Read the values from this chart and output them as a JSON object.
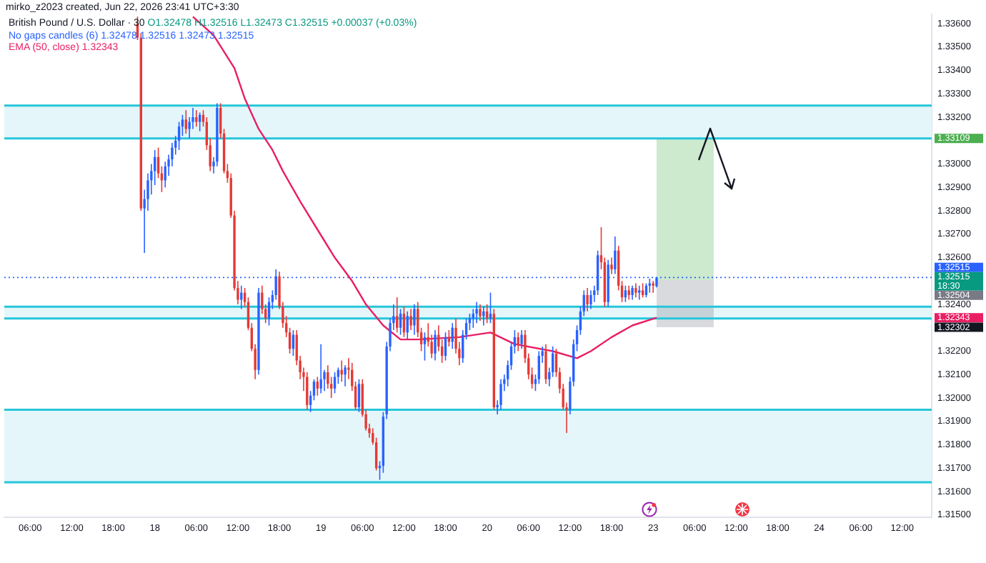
{
  "chart_data": {
    "type": "candlestick",
    "title": "British Pound / U.S. Dollar · 30",
    "annotations": [
      "mirko_z2023 created, Jun 22, 2026 23:41 UTC+3:30",
      "O1.32478 H1.32516 L1.32473 C1.32515 +0.00037 (+0.03%)",
      "No gaps candles (6) 1.32478 1.32516 1.32473 1.32515",
      "1.32343",
      "1.32515\n18:30",
      "1.32504",
      "1.33109",
      "1.32302"
    ],
    "categories": [
      null,
      null,
      null,
      null,
      null,
      null,
      null,
      "06:00",
      null,
      null,
      null,
      null,
      null,
      null,
      null,
      null,
      null,
      null,
      null,
      "12:00",
      null,
      null,
      null,
      null,
      null,
      null,
      null,
      null,
      null,
      null,
      null,
      "18:00",
      null,
      null,
      null,
      null,
      null,
      null,
      null,
      null,
      null,
      null,
      null,
      "18",
      null,
      null,
      null,
      null,
      null,
      null,
      null,
      null,
      null,
      null,
      null,
      "06:00",
      null,
      null,
      null,
      null,
      null,
      null,
      null,
      null,
      null,
      null,
      null,
      "12:00",
      null,
      null,
      null,
      null,
      null,
      null,
      null,
      null,
      null,
      null,
      null,
      "18:00",
      null,
      null,
      null,
      null,
      null,
      null,
      null,
      null,
      null,
      null,
      null,
      "19",
      null,
      null,
      null,
      null,
      null,
      null,
      null,
      null,
      null,
      null,
      null,
      "06:00",
      null,
      null,
      null,
      null,
      null,
      null,
      null,
      null,
      null,
      null,
      null,
      "12:00",
      null,
      null,
      null,
      null,
      null,
      null,
      null,
      null,
      null,
      null,
      null,
      "18:00",
      null,
      null,
      null,
      null,
      null,
      null,
      null,
      null,
      null,
      null,
      null,
      "20",
      null,
      null,
      null,
      null,
      null,
      null,
      null,
      null,
      null,
      null,
      null,
      "06:00",
      null,
      null,
      null,
      null,
      null,
      null,
      null,
      null,
      null,
      null,
      null,
      "12:00",
      null,
      null,
      null,
      null,
      null,
      null,
      null,
      null,
      null,
      null,
      null,
      "18:00",
      null,
      null,
      null,
      null,
      null,
      null,
      null,
      null,
      null,
      null,
      null,
      "23",
      null,
      null,
      null,
      null,
      null,
      null,
      null,
      null,
      null,
      null,
      null,
      "06:00",
      null,
      null,
      null,
      null,
      null,
      null,
      null,
      null,
      null,
      null,
      null,
      "12:00",
      null,
      null,
      null,
      null,
      null,
      null,
      null,
      null,
      null,
      null,
      null,
      "18:00",
      null,
      null,
      null,
      null,
      null,
      null,
      null,
      null,
      null,
      null,
      null,
      "24",
      null,
      null,
      null,
      null,
      null,
      null,
      null,
      null,
      null,
      null,
      null,
      "06:00",
      null,
      null,
      null,
      null,
      null,
      null,
      null,
      null,
      null,
      null,
      null,
      "12:00",
      null,
      null,
      null,
      null,
      null,
      null,
      null,
      null
    ],
    "ohlc": [
      null,
      null,
      null,
      null,
      null,
      null,
      null,
      null,
      null,
      null,
      null,
      null,
      null,
      null,
      null,
      null,
      null,
      null,
      null,
      null,
      null,
      null,
      null,
      null,
      null,
      null,
      null,
      null,
      null,
      null,
      null,
      null,
      null,
      null,
      null,
      null,
      null,
      null,
      [
        1.336,
        1.3363,
        1.3353,
        1.3354
      ],
      [
        1.3354,
        1.3356,
        1.328,
        1.3281
      ],
      [
        1.3281,
        1.3289,
        1.3262,
        1.3285
      ],
      [
        1.3285,
        1.3296,
        1.328,
        1.3293
      ],
      [
        1.3293,
        1.33,
        1.3287,
        1.3297
      ],
      [
        1.3297,
        1.3306,
        1.3291,
        1.3303
      ],
      [
        1.3303,
        1.3307,
        1.3294,
        1.3296
      ],
      [
        1.3296,
        1.3299,
        1.3288,
        1.3293
      ],
      [
        1.3293,
        1.3301,
        1.329,
        1.3299
      ],
      [
        1.3299,
        1.3304,
        1.3295,
        1.3302
      ],
      [
        1.3302,
        1.3309,
        1.3299,
        1.3307
      ],
      [
        1.3307,
        1.3312,
        1.3304,
        1.331
      ],
      [
        1.331,
        1.3318,
        1.3306,
        1.3316
      ],
      [
        1.3316,
        1.3321,
        1.3312,
        1.3319
      ],
      [
        1.3319,
        1.3323,
        1.3313,
        1.3315
      ],
      [
        1.3315,
        1.332,
        1.3311,
        1.3318
      ],
      [
        1.3318,
        1.3324,
        1.3315,
        1.332
      ],
      [
        1.332,
        1.3323,
        1.3316,
        1.3318
      ],
      [
        1.3318,
        1.3322,
        1.3314,
        1.3321
      ],
      [
        1.3321,
        1.3323,
        1.3316,
        1.3318
      ],
      [
        1.3318,
        1.332,
        1.3306,
        1.3308
      ],
      [
        1.3308,
        1.3311,
        1.3297,
        1.3299
      ],
      [
        1.3299,
        1.3303,
        1.3296,
        1.3301
      ],
      [
        1.3301,
        1.3326,
        1.3299,
        1.3324
      ],
      [
        1.3324,
        1.3326,
        1.3311,
        1.3313
      ],
      [
        1.3313,
        1.3315,
        1.3296,
        1.3297
      ],
      [
        1.3297,
        1.33,
        1.3292,
        1.3294
      ],
      [
        1.3294,
        1.3296,
        1.3277,
        1.3278
      ],
      [
        1.3278,
        1.328,
        1.3246,
        1.3247
      ],
      [
        1.3247,
        1.325,
        1.324,
        1.3242
      ],
      [
        1.3242,
        1.3248,
        1.3238,
        1.3245
      ],
      [
        1.3245,
        1.3247,
        1.3239,
        1.3241
      ],
      [
        1.3241,
        1.3243,
        1.3229,
        1.323
      ],
      [
        1.323,
        1.3232,
        1.322,
        1.3221
      ],
      [
        1.3221,
        1.3223,
        1.3208,
        1.3212
      ],
      [
        1.3212,
        1.3247,
        1.321,
        1.3245
      ],
      [
        1.3245,
        1.3248,
        1.3236,
        1.3238
      ],
      [
        1.3238,
        1.324,
        1.3232,
        1.3234
      ],
      [
        1.3234,
        1.3243,
        1.3231,
        1.3241
      ],
      [
        1.3241,
        1.3246,
        1.3238,
        1.3244
      ],
      [
        1.3244,
        1.3255,
        1.3242,
        1.3252
      ],
      [
        1.3252,
        1.3254,
        1.3238,
        1.3239
      ],
      [
        1.3239,
        1.3241,
        1.323,
        1.3232
      ],
      [
        1.3232,
        1.3235,
        1.3226,
        1.3228
      ],
      [
        1.3228,
        1.323,
        1.3219,
        1.3221
      ],
      [
        1.3221,
        1.3229,
        1.3218,
        1.3227
      ],
      [
        1.3227,
        1.3229,
        1.3214,
        1.3216
      ],
      [
        1.3216,
        1.3218,
        1.3208,
        1.3211
      ],
      [
        1.3211,
        1.3213,
        1.3203,
        1.3209
      ],
      [
        1.3209,
        1.3211,
        1.3195,
        1.3197
      ],
      [
        1.3197,
        1.3203,
        1.3194,
        1.3201
      ],
      [
        1.3201,
        1.3208,
        1.3199,
        1.3207
      ],
      [
        1.3207,
        1.3209,
        1.3201,
        1.3204
      ],
      [
        1.3204,
        1.3223,
        1.3202,
        1.3208
      ],
      [
        1.3208,
        1.3212,
        1.3203,
        1.3211
      ],
      [
        1.3211,
        1.3214,
        1.3204,
        1.3206
      ],
      [
        1.3206,
        1.3209,
        1.32,
        1.3204
      ],
      [
        1.3204,
        1.3211,
        1.3202,
        1.3209
      ],
      [
        1.3209,
        1.3213,
        1.3206,
        1.3212
      ],
      [
        1.3212,
        1.3216,
        1.3207,
        1.321
      ],
      [
        1.321,
        1.3214,
        1.3205,
        1.3213
      ],
      [
        1.3213,
        1.3217,
        1.3208,
        1.3212
      ],
      [
        1.3212,
        1.3215,
        1.3203,
        1.3205
      ],
      [
        1.3205,
        1.3207,
        1.3195,
        1.3196
      ],
      [
        1.3196,
        1.3208,
        1.3194,
        1.3206
      ],
      [
        1.3206,
        1.3208,
        1.3192,
        1.3193
      ],
      [
        1.3193,
        1.3195,
        1.3186,
        1.3187
      ],
      [
        1.3187,
        1.3189,
        1.3183,
        1.3185
      ],
      [
        1.3185,
        1.3187,
        1.318,
        1.3181
      ],
      [
        1.3181,
        1.3183,
        1.3169,
        1.317
      ],
      [
        1.317,
        1.3173,
        1.3165,
        1.3171
      ],
      [
        1.3171,
        1.3194,
        1.3168,
        1.3192
      ],
      [
        1.3193,
        1.3224,
        1.3191,
        1.3222
      ],
      [
        1.3222,
        1.3234,
        1.322,
        1.3232
      ],
      [
        1.3232,
        1.324,
        1.3229,
        1.3235
      ],
      [
        1.3235,
        1.3243,
        1.3228,
        1.323
      ],
      [
        1.323,
        1.3238,
        1.3227,
        1.3236
      ],
      [
        1.3236,
        1.3239,
        1.3226,
        1.3228
      ],
      [
        1.3228,
        1.3237,
        1.3225,
        1.3235
      ],
      [
        1.3235,
        1.3238,
        1.3229,
        1.3231
      ],
      [
        1.3231,
        1.324,
        1.3227,
        1.3238
      ],
      [
        1.3238,
        1.3241,
        1.3226,
        1.3228
      ],
      [
        1.3228,
        1.323,
        1.322,
        1.3223
      ],
      [
        1.3223,
        1.3228,
        1.3216,
        1.3226
      ],
      [
        1.3226,
        1.3232,
        1.3222,
        1.3224
      ],
      [
        1.3224,
        1.3227,
        1.3217,
        1.3219
      ],
      [
        1.3219,
        1.3229,
        1.3216,
        1.3227
      ],
      [
        1.3227,
        1.3231,
        1.322,
        1.3222
      ],
      [
        1.3222,
        1.3225,
        1.3215,
        1.3218
      ],
      [
        1.3218,
        1.3228,
        1.3216,
        1.3226
      ],
      [
        1.3226,
        1.3229,
        1.3222,
        1.3224
      ],
      [
        1.3224,
        1.3232,
        1.3221,
        1.323
      ],
      [
        1.323,
        1.3234,
        1.3219,
        1.3221
      ],
      [
        1.3221,
        1.3224,
        1.3214,
        1.3217
      ],
      [
        1.3217,
        1.3229,
        1.3215,
        1.3227
      ],
      [
        1.3227,
        1.3234,
        1.3225,
        1.3232
      ],
      [
        1.3232,
        1.3236,
        1.3229,
        1.3234
      ],
      [
        1.3234,
        1.3238,
        1.323,
        1.3236
      ],
      [
        1.3236,
        1.3241,
        1.3232,
        1.3238
      ],
      [
        1.3238,
        1.324,
        1.3233,
        1.3235
      ],
      [
        1.3235,
        1.3239,
        1.3231,
        1.3237
      ],
      [
        1.3237,
        1.324,
        1.3232,
        1.3234
      ],
      [
        1.3234,
        1.3245,
        1.3232,
        1.3236
      ],
      [
        1.3236,
        1.3238,
        1.3195,
        1.3196
      ],
      [
        1.3196,
        1.3199,
        1.3193,
        1.3197
      ],
      [
        1.3197,
        1.3208,
        1.3195,
        1.3206
      ],
      [
        1.3206,
        1.321,
        1.3203,
        1.3208
      ],
      [
        1.3208,
        1.3216,
        1.3205,
        1.3214
      ],
      [
        1.3214,
        1.3224,
        1.3212,
        1.3222
      ],
      [
        1.3222,
        1.3229,
        1.3219,
        1.3226
      ],
      [
        1.3226,
        1.3228,
        1.322,
        1.3223
      ],
      [
        1.3223,
        1.3229,
        1.3221,
        1.3227
      ],
      [
        1.3227,
        1.3229,
        1.3215,
        1.3217
      ],
      [
        1.3217,
        1.3219,
        1.3208,
        1.321
      ],
      [
        1.321,
        1.3213,
        1.3204,
        1.3206
      ],
      [
        1.3206,
        1.321,
        1.3203,
        1.3208
      ],
      [
        1.3208,
        1.322,
        1.3206,
        1.3218
      ],
      [
        1.3218,
        1.3222,
        1.3215,
        1.322
      ],
      [
        1.322,
        1.3223,
        1.3206,
        1.3208
      ],
      [
        1.3208,
        1.3213,
        1.3205,
        1.3211
      ],
      [
        1.3211,
        1.3222,
        1.3209,
        1.3219
      ],
      [
        1.3219,
        1.3221,
        1.3209,
        1.3211
      ],
      [
        1.3211,
        1.3213,
        1.3202,
        1.3204
      ],
      [
        1.3204,
        1.3206,
        1.3195,
        1.3196
      ],
      [
        1.3196,
        1.3198,
        1.3185,
        1.3195
      ],
      [
        1.3195,
        1.3209,
        1.3193,
        1.3207
      ],
      [
        1.3207,
        1.3225,
        1.3205,
        1.3223
      ],
      [
        1.3223,
        1.3231,
        1.322,
        1.3229
      ],
      [
        1.3229,
        1.3239,
        1.3227,
        1.3237
      ],
      [
        1.3237,
        1.3246,
        1.3235,
        1.3244
      ],
      [
        1.3244,
        1.3247,
        1.3237,
        1.324
      ],
      [
        1.324,
        1.3246,
        1.3238,
        1.3244
      ],
      [
        1.3244,
        1.3248,
        1.3241,
        1.3246
      ],
      [
        1.3246,
        1.3263,
        1.3244,
        1.3261
      ],
      [
        1.3261,
        1.3273,
        1.3255,
        1.3258
      ],
      [
        1.3258,
        1.326,
        1.3239,
        1.3241
      ],
      [
        1.3241,
        1.3259,
        1.3239,
        1.3257
      ],
      [
        1.3257,
        1.326,
        1.3253,
        1.3255
      ],
      [
        1.3255,
        1.3269,
        1.3253,
        1.3263
      ],
      [
        1.3263,
        1.3265,
        1.3246,
        1.3248
      ],
      [
        1.3248,
        1.325,
        1.3241,
        1.3243
      ],
      [
        1.3243,
        1.3248,
        1.3241,
        1.3246
      ],
      [
        1.3246,
        1.3248,
        1.3242,
        1.3244
      ],
      [
        1.3244,
        1.3248,
        1.3242,
        1.3247
      ],
      [
        1.3247,
        1.3249,
        1.3243,
        1.3245
      ],
      [
        1.3245,
        1.3248,
        1.3242,
        1.3246
      ],
      [
        1.3246,
        1.3249,
        1.3243,
        1.3244
      ],
      [
        1.3244,
        1.3249,
        1.3243,
        1.3248
      ],
      [
        1.3248,
        1.3251,
        1.3245,
        1.3249
      ],
      [
        1.3249,
        1.325,
        1.3245,
        1.3248
      ],
      [
        1.32478,
        1.32516,
        1.32473,
        1.32515
      ],
      null,
      null,
      null,
      null,
      null,
      null,
      null,
      null,
      null,
      null,
      null,
      null,
      null,
      null,
      null,
      null,
      null,
      null,
      null,
      null,
      null,
      null,
      null,
      null,
      null,
      null,
      null,
      null,
      null,
      null,
      null,
      null,
      null,
      null,
      null,
      null,
      null,
      null,
      null,
      null,
      null,
      null,
      null,
      null,
      null,
      null,
      null,
      null,
      null,
      null,
      null,
      null,
      null,
      null,
      null,
      null,
      null,
      null,
      null,
      null,
      null,
      null,
      null,
      null,
      null,
      null,
      null,
      null,
      null,
      null,
      null,
      null,
      null,
      null,
      null,
      null,
      null,
      null,
      null
    ],
    "colors": [
      null,
      null,
      null,
      null,
      null,
      null,
      null,
      null,
      null,
      null,
      null,
      null,
      null,
      null,
      null,
      null,
      null,
      null,
      null,
      null,
      null,
      null,
      null,
      null,
      null,
      null,
      null,
      null,
      null,
      null,
      null,
      null,
      null,
      null,
      null,
      null,
      null,
      null,
      "#e53935",
      "#e53935",
      "#2962ff",
      "#2962ff",
      "#2962ff",
      "#2962ff",
      "#e53935",
      "#e53935",
      "#2962ff",
      "#2962ff",
      "#2962ff",
      "#2962ff",
      "#2962ff",
      "#2962ff",
      "#e53935",
      "#2962ff",
      "#2962ff",
      "#e53935",
      "#2962ff",
      "#e53935",
      "#e53935",
      "#e53935",
      "#2962ff",
      "#2962ff",
      "#e53935",
      "#e53935",
      "#e53935",
      "#e53935",
      "#e53935",
      "#e53935",
      "#2962ff",
      "#e53935",
      "#e53935",
      "#e53935",
      "#e53935",
      "#2962ff",
      "#e53935",
      "#e53935",
      "#2962ff",
      "#2962ff",
      "#2962ff",
      "#e53935",
      "#e53935",
      "#e53935",
      "#e53935",
      "#2962ff",
      "#e53935",
      "#e53935",
      "#e53935",
      "#e53935",
      "#2962ff",
      "#2962ff",
      "#e53935",
      "#2962ff",
      "#2962ff",
      "#e53935",
      "#e53935",
      "#2962ff",
      "#2962ff",
      "#e53935",
      "#2962ff",
      "#e53935",
      "#e53935",
      "#e53935",
      "#2962ff",
      "#e53935",
      "#e53935",
      "#e53935",
      "#e53935",
      "#e53935",
      "#2962ff",
      "#2962ff",
      "#2962ff",
      "#2962ff",
      "#2962ff",
      "#e53935",
      "#2962ff",
      "#e53935",
      "#2962ff",
      "#e53935",
      "#2962ff",
      "#e53935",
      "#e53935",
      "#2962ff",
      "#e53935",
      "#e53935",
      "#2962ff",
      "#e53935",
      "#e53935",
      "#2962ff",
      "#e53935",
      "#2962ff",
      "#e53935",
      "#e53935",
      "#2962ff",
      "#2962ff",
      "#2962ff",
      "#2962ff",
      "#2962ff",
      "#e53935",
      "#2962ff",
      "#e53935",
      "#2962ff",
      "#e53935",
      "#2962ff",
      "#2962ff",
      "#2962ff",
      "#2962ff",
      "#2962ff",
      "#2962ff",
      "#e53935",
      "#2962ff",
      "#e53935",
      "#e53935",
      "#e53935",
      "#2962ff",
      "#2962ff",
      "#2962ff",
      "#e53935",
      "#2962ff",
      "#2962ff",
      "#e53935",
      "#e53935",
      "#e53935",
      "#e53935",
      "#2962ff",
      "#2962ff",
      "#2962ff",
      "#2962ff",
      "#2962ff",
      "#e53935",
      "#2962ff",
      "#2962ff",
      "#2962ff",
      "#e53935",
      "#e53935",
      "#2962ff",
      "#e53935",
      "#2962ff",
      "#e53935",
      "#e53935",
      "#2962ff",
      "#e53935",
      "#2962ff",
      "#e53935",
      "#2962ff",
      "#e53935",
      "#2962ff",
      "#2962ff",
      "#e53935",
      "#2962ff",
      null,
      null,
      null,
      null,
      null,
      null,
      null,
      null,
      null,
      null,
      null,
      null,
      null,
      null,
      null,
      null,
      null,
      null,
      null,
      null,
      null,
      null,
      null,
      null,
      null,
      null,
      null,
      null,
      null,
      null,
      null,
      null,
      null,
      null,
      null,
      null,
      null,
      null,
      null,
      null,
      null,
      null,
      null,
      null,
      null,
      null,
      null,
      null,
      null,
      null,
      null,
      null,
      null,
      null,
      null,
      null,
      null,
      null,
      null,
      null,
      null,
      null,
      null,
      null,
      null,
      null,
      null,
      null,
      null,
      null,
      null,
      null,
      null,
      null,
      null,
      null,
      null,
      null,
      null
    ],
    "series": [
      {
        "type": "line",
        "name": "EMA (50, close)",
        "color": "#e91e63",
        "values": [
          null,
          null,
          null,
          null,
          null,
          null,
          null,
          null,
          null,
          null,
          null,
          null,
          null,
          null,
          null,
          null,
          null,
          null,
          null,
          null,
          null,
          null,
          null,
          null,
          null,
          null,
          null,
          null,
          null,
          null,
          null,
          null,
          null,
          null,
          null,
          null,
          null,
          null,
          null,
          null,
          null,
          null,
          null,
          null,
          null,
          null,
          null,
          null,
          null,
          null,
          null,
          null,
          null,
          null,
          1.3363,
          null,
          null,
          null,
          null,
          null,
          1.3355,
          null,
          null,
          null,
          null,
          null,
          1.3341,
          null,
          null,
          1.3328,
          null,
          null,
          null,
          1.3315,
          null,
          null,
          null,
          1.3306,
          null,
          null,
          1.3297,
          null,
          null,
          null,
          null,
          1.3284,
          null,
          null,
          null,
          null,
          1.3272,
          null,
          null,
          null,
          null,
          1.326,
          null,
          null,
          null,
          null,
          1.325,
          null,
          null,
          null,
          1.324,
          null,
          null,
          null,
          null,
          1.3231,
          null,
          null,
          null,
          null,
          1.3225,
          null,
          null,
          null,
          null,
          1.3225,
          null,
          null,
          null,
          null,
          null,
          null,
          null,
          null,
          null,
          null,
          null,
          1.3226,
          null,
          null,
          null,
          null,
          null,
          null,
          null,
          null,
          1.3228,
          null,
          null,
          null,
          null,
          null,
          null,
          1.3223,
          null,
          null,
          null,
          null,
          null,
          null,
          null,
          null,
          null,
          null,
          1.322,
          null,
          null,
          null,
          null,
          null,
          null,
          1.3217,
          null,
          null,
          null,
          1.322,
          null,
          null,
          null,
          null,
          null,
          1.3226,
          null,
          null,
          null,
          null,
          null,
          1.3231,
          null,
          null,
          null,
          null,
          null,
          null,
          1.32343,
          null,
          null,
          null,
          null,
          null,
          null,
          null,
          null,
          null,
          null,
          null,
          null,
          null,
          null,
          null,
          null,
          null,
          null,
          null,
          null,
          null,
          null,
          null,
          null,
          null,
          null,
          null,
          null,
          null,
          null,
          null,
          null,
          null,
          null,
          null,
          null,
          null,
          null,
          null,
          null,
          null,
          null,
          null,
          null,
          null,
          null,
          null,
          null,
          null,
          null,
          null,
          null,
          null,
          null,
          null,
          null,
          null,
          null,
          null,
          null,
          null,
          null,
          null,
          null,
          null,
          null,
          null,
          null,
          null,
          null,
          null,
          null,
          null,
          null,
          null,
          null,
          null,
          null,
          null
        ]
      }
    ],
    "ylim": [
      1.3149,
      1.3364
    ],
    "yticks": [
      {
        "value": 1.315,
        "label": "1.31500"
      },
      {
        "value": 1.316,
        "label": "1.31600"
      },
      {
        "value": 1.317,
        "label": "1.31700"
      },
      {
        "value": 1.318,
        "label": "1.31800"
      },
      {
        "value": 1.319,
        "label": "1.31900"
      },
      {
        "value": 1.32,
        "label": "1.32000"
      },
      {
        "value": 1.321,
        "label": "1.32100"
      },
      {
        "value": 1.322,
        "label": "1.32200"
      },
      {
        "value": 1.324,
        "label": "1.32400"
      },
      {
        "value": 1.326,
        "label": "1.32600"
      },
      {
        "value": 1.327,
        "label": "1.32700"
      },
      {
        "value": 1.328,
        "label": "1.32800"
      },
      {
        "value": 1.329,
        "label": "1.32900"
      },
      {
        "value": 1.33,
        "label": "1.33000"
      },
      {
        "value": 1.332,
        "label": "1.33200"
      },
      {
        "value": 1.333,
        "label": "1.33300"
      },
      {
        "value": 1.334,
        "label": "1.33400"
      },
      {
        "value": 1.335,
        "label": "1.33500"
      },
      {
        "value": 1.336,
        "label": "1.33600"
      }
    ],
    "bands": [
      {
        "axis": "y",
        "from": 1.33109,
        "to": 1.3325,
        "color": "#e4f6fa"
      },
      {
        "axis": "y",
        "from": 1.3234,
        "to": 1.3239,
        "color": "#e4f6fa"
      },
      {
        "axis": "y",
        "from": 1.3164,
        "to": 1.3195,
        "color": "#e4f6fa"
      },
      {
        "axis": "y",
        "from": 1.32504,
        "to": 1.33109,
        "color": "#4caf50"
      },
      {
        "axis": "y",
        "from": 1.32302,
        "to": 1.32504,
        "color": "#787b86"
      }
    ],
    "ref_lines": [
      {
        "axis": "y",
        "value": 1.3325,
        "color": "#26c6da",
        "line_style": "solid"
      },
      {
        "axis": "y",
        "value": 1.33109,
        "color": "#26c6da",
        "line_style": "solid"
      },
      {
        "axis": "y",
        "value": 1.3239,
        "color": "#26c6da",
        "line_style": "solid"
      },
      {
        "axis": "y",
        "value": 1.3234,
        "color": "#26c6da",
        "line_style": "solid"
      },
      {
        "axis": "y",
        "value": 1.3195,
        "color": "#26c6da",
        "line_style": "solid"
      },
      {
        "axis": "y",
        "value": 1.3164,
        "color": "#26c6da",
        "line_style": "solid"
      },
      {
        "axis": "y",
        "value": 1.32515,
        "label": "1.32515",
        "color": "#2962ff",
        "line_style": "dotted"
      }
    ],
    "legend": "top left",
    "grid": false
  }
}
